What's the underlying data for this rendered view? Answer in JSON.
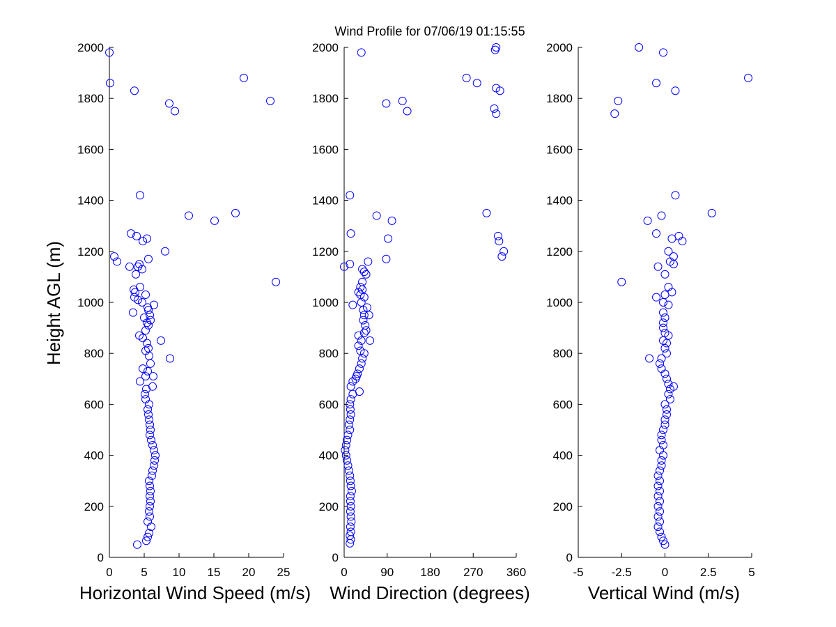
{
  "chart_data": {
    "type": "scatter",
    "title": "Wind Profile for  07/06/19 01:15:55",
    "ylabel": "Height AGL (m)",
    "marker_color": "#0000ff",
    "panels": [
      {
        "id": "speed",
        "xlabel": "Horizontal Wind Speed (m/s)",
        "xlim": [
          0,
          25
        ],
        "ylim": [
          0,
          2000
        ],
        "xticks": [
          0,
          5,
          10,
          15,
          20,
          25
        ],
        "xtick_labels": [
          "0",
          "5",
          "10",
          "15",
          "20",
          "25"
        ],
        "yticks": [
          0,
          200,
          400,
          600,
          800,
          1000,
          1200,
          1400,
          1600,
          1800,
          2000
        ],
        "ytick_labels": [
          "0",
          "200",
          "400",
          "600",
          "800",
          "1000",
          "1200",
          "1400",
          "1600",
          "1800",
          "2000"
        ],
        "points": [
          [
            4,
            50
          ],
          [
            5.3,
            65
          ],
          [
            5.5,
            80
          ],
          [
            5.7,
            95
          ],
          [
            6,
            120
          ],
          [
            5.5,
            140
          ],
          [
            5.8,
            160
          ],
          [
            5.7,
            180
          ],
          [
            5.8,
            200
          ],
          [
            5.9,
            220
          ],
          [
            5.8,
            240
          ],
          [
            5.9,
            260
          ],
          [
            5.8,
            280
          ],
          [
            5.7,
            300
          ],
          [
            6.1,
            320
          ],
          [
            6.2,
            340
          ],
          [
            6.4,
            360
          ],
          [
            6.5,
            380
          ],
          [
            6.6,
            400
          ],
          [
            6.4,
            420
          ],
          [
            6.2,
            440
          ],
          [
            6,
            460
          ],
          [
            5.8,
            480
          ],
          [
            5.9,
            500
          ],
          [
            5.8,
            520
          ],
          [
            5.7,
            540
          ],
          [
            5.6,
            560
          ],
          [
            5.5,
            580
          ],
          [
            5.7,
            600
          ],
          [
            5.2,
            620
          ],
          [
            5.1,
            640
          ],
          [
            5.3,
            660
          ],
          [
            6.2,
            670
          ],
          [
            4.4,
            690
          ],
          [
            5.2,
            710
          ],
          [
            6.3,
            710
          ],
          [
            5.5,
            730
          ],
          [
            4.8,
            740
          ],
          [
            5.9,
            760
          ],
          [
            8.7,
            780
          ],
          [
            5.7,
            790
          ],
          [
            5.2,
            810
          ],
          [
            5.6,
            820
          ],
          [
            5.4,
            840
          ],
          [
            7.4,
            850
          ],
          [
            4.8,
            860
          ],
          [
            4.3,
            870
          ],
          [
            5.2,
            890
          ],
          [
            5.6,
            910
          ],
          [
            5.4,
            920
          ],
          [
            5.9,
            930
          ],
          [
            5,
            940
          ],
          [
            5.8,
            950
          ],
          [
            3.4,
            960
          ],
          [
            5.6,
            970
          ],
          [
            5.5,
            980
          ],
          [
            6.4,
            990
          ],
          [
            4.7,
            1000
          ],
          [
            4.1,
            1010
          ],
          [
            3.6,
            1020
          ],
          [
            5.2,
            1030
          ],
          [
            3.7,
            1040
          ],
          [
            3.5,
            1050
          ],
          [
            4.4,
            1060
          ],
          [
            23.9,
            1080
          ],
          [
            3.8,
            1110
          ],
          [
            4.7,
            1130
          ],
          [
            4.1,
            1140
          ],
          [
            2.9,
            1140
          ],
          [
            4.3,
            1150
          ],
          [
            1.1,
            1160
          ],
          [
            5.6,
            1170
          ],
          [
            0.7,
            1180
          ],
          [
            8,
            1200
          ],
          [
            4.8,
            1240
          ],
          [
            5.4,
            1250
          ],
          [
            3.9,
            1260
          ],
          [
            3.1,
            1270
          ],
          [
            15.1,
            1320
          ],
          [
            11.4,
            1340
          ],
          [
            18.1,
            1350
          ],
          [
            4.4,
            1420
          ],
          [
            0.1,
            1860
          ],
          [
            3.6,
            1830
          ],
          [
            8.6,
            1780
          ],
          [
            9.4,
            1750
          ],
          [
            23.1,
            1790
          ],
          [
            19.3,
            1880
          ],
          [
            0,
            1980
          ]
        ]
      },
      {
        "id": "direction",
        "xlabel": "Wind Direction (degrees)",
        "xlim": [
          0,
          360
        ],
        "ylim": [
          0,
          2000
        ],
        "xticks": [
          0,
          90,
          180,
          270,
          360
        ],
        "xtick_labels": [
          "0",
          "90",
          "180",
          "270",
          "360"
        ],
        "yticks": [
          0,
          200,
          400,
          600,
          800,
          1000,
          1200,
          1400,
          1600,
          1800,
          2000
        ],
        "ytick_labels": [
          "0",
          "200",
          "400",
          "600",
          "800",
          "1000",
          "1200",
          "1400",
          "1600",
          "1800",
          "2000"
        ],
        "points": [
          [
            12,
            55
          ],
          [
            14,
            70
          ],
          [
            12,
            85
          ],
          [
            14,
            100
          ],
          [
            13,
            120
          ],
          [
            15,
            140
          ],
          [
            14,
            160
          ],
          [
            13,
            180
          ],
          [
            14,
            200
          ],
          [
            13,
            220
          ],
          [
            13,
            240
          ],
          [
            16,
            260
          ],
          [
            14,
            280
          ],
          [
            13,
            300
          ],
          [
            12,
            320
          ],
          [
            10,
            340
          ],
          [
            8,
            360
          ],
          [
            6,
            380
          ],
          [
            4,
            400
          ],
          [
            2,
            420
          ],
          [
            4,
            440
          ],
          [
            6,
            460
          ],
          [
            8,
            480
          ],
          [
            12,
            500
          ],
          [
            10,
            520
          ],
          [
            12,
            540
          ],
          [
            14,
            560
          ],
          [
            13,
            580
          ],
          [
            12,
            600
          ],
          [
            14,
            620
          ],
          [
            18,
            640
          ],
          [
            32,
            650
          ],
          [
            14,
            670
          ],
          [
            18,
            690
          ],
          [
            24,
            700
          ],
          [
            26,
            710
          ],
          [
            28,
            720
          ],
          [
            32,
            740
          ],
          [
            36,
            760
          ],
          [
            38,
            780
          ],
          [
            42,
            800
          ],
          [
            34,
            810
          ],
          [
            30,
            830
          ],
          [
            36,
            850
          ],
          [
            54,
            850
          ],
          [
            30,
            870
          ],
          [
            42,
            880
          ],
          [
            46,
            890
          ],
          [
            44,
            910
          ],
          [
            40,
            930
          ],
          [
            42,
            950
          ],
          [
            52,
            950
          ],
          [
            40,
            970
          ],
          [
            48,
            980
          ],
          [
            18,
            990
          ],
          [
            36,
            1000
          ],
          [
            42,
            1020
          ],
          [
            34,
            1030
          ],
          [
            30,
            1040
          ],
          [
            38,
            1050
          ],
          [
            34,
            1060
          ],
          [
            38,
            1080
          ],
          [
            46,
            1110
          ],
          [
            42,
            1120
          ],
          [
            38,
            1130
          ],
          [
            0,
            1140
          ],
          [
            12,
            1150
          ],
          [
            50,
            1160
          ],
          [
            88,
            1170
          ],
          [
            92,
            1250
          ],
          [
            330,
            1180
          ],
          [
            334,
            1200
          ],
          [
            324,
            1240
          ],
          [
            322,
            1260
          ],
          [
            14,
            1270
          ],
          [
            100,
            1320
          ],
          [
            68,
            1340
          ],
          [
            298,
            1350
          ],
          [
            12,
            1420
          ],
          [
            278,
            1860
          ],
          [
            256,
            1880
          ],
          [
            88,
            1780
          ],
          [
            132,
            1750
          ],
          [
            122,
            1790
          ],
          [
            314,
            1760
          ],
          [
            318,
            1740
          ],
          [
            318,
            1840
          ],
          [
            326,
            1830
          ],
          [
            36,
            1980
          ],
          [
            316,
            1990
          ],
          [
            318,
            2000
          ]
        ]
      },
      {
        "id": "vertical",
        "xlabel": "Vertical Wind (m/s)",
        "xlim": [
          -5,
          5
        ],
        "ylim": [
          0,
          2000
        ],
        "xticks": [
          -5,
          -2.5,
          0,
          2.5,
          5
        ],
        "xtick_labels": [
          "-5",
          "-2.5",
          "0",
          "2.5",
          "5"
        ],
        "yticks": [
          0,
          200,
          400,
          600,
          800,
          1000,
          1200,
          1400,
          1600,
          1800,
          2000
        ],
        "ytick_labels": [
          "0",
          "200",
          "400",
          "600",
          "800",
          "1000",
          "1200",
          "1400",
          "1600",
          "1800",
          "2000"
        ],
        "points": [
          [
            0,
            50
          ],
          [
            -0.1,
            65
          ],
          [
            -0.2,
            80
          ],
          [
            -0.3,
            100
          ],
          [
            -0.4,
            120
          ],
          [
            -0.3,
            140
          ],
          [
            -0.4,
            160
          ],
          [
            -0.3,
            180
          ],
          [
            -0.4,
            200
          ],
          [
            -0.3,
            220
          ],
          [
            -0.4,
            240
          ],
          [
            -0.3,
            260
          ],
          [
            -0.4,
            280
          ],
          [
            -0.3,
            300
          ],
          [
            -0.4,
            320
          ],
          [
            -0.3,
            340
          ],
          [
            -0.2,
            360
          ],
          [
            -0.2,
            380
          ],
          [
            -0.1,
            400
          ],
          [
            -0.3,
            420
          ],
          [
            -0.1,
            440
          ],
          [
            -0.2,
            460
          ],
          [
            -0.2,
            480
          ],
          [
            -0.1,
            500
          ],
          [
            0,
            520
          ],
          [
            0,
            540
          ],
          [
            0.1,
            560
          ],
          [
            0.1,
            580
          ],
          [
            0,
            600
          ],
          [
            0.3,
            620
          ],
          [
            0.2,
            640
          ],
          [
            0.3,
            660
          ],
          [
            0.5,
            670
          ],
          [
            0.2,
            680
          ],
          [
            0.1,
            700
          ],
          [
            0,
            720
          ],
          [
            -0.2,
            740
          ],
          [
            -0.3,
            760
          ],
          [
            -0.2,
            780
          ],
          [
            -0.9,
            780
          ],
          [
            0.1,
            800
          ],
          [
            0,
            820
          ],
          [
            0.1,
            840
          ],
          [
            -0.1,
            850
          ],
          [
            0.2,
            870
          ],
          [
            0,
            880
          ],
          [
            -0.1,
            900
          ],
          [
            -0.1,
            920
          ],
          [
            0,
            940
          ],
          [
            -0.1,
            960
          ],
          [
            0.2,
            990
          ],
          [
            -0.1,
            1000
          ],
          [
            -0.5,
            1020
          ],
          [
            0,
            1030
          ],
          [
            0.4,
            1040
          ],
          [
            0.2,
            1060
          ],
          [
            -2.5,
            1080
          ],
          [
            0,
            1110
          ],
          [
            -0.4,
            1140
          ],
          [
            0.5,
            1150
          ],
          [
            0.3,
            1160
          ],
          [
            0.5,
            1180
          ],
          [
            0.2,
            1200
          ],
          [
            1,
            1240
          ],
          [
            0.4,
            1250
          ],
          [
            0.8,
            1260
          ],
          [
            -0.5,
            1270
          ],
          [
            -1,
            1320
          ],
          [
            -0.2,
            1340
          ],
          [
            2.7,
            1350
          ],
          [
            0.6,
            1420
          ],
          [
            -0.5,
            1860
          ],
          [
            0.6,
            1830
          ],
          [
            -2.7,
            1790
          ],
          [
            -2.9,
            1740
          ],
          [
            4.8,
            1880
          ],
          [
            -0.1,
            1980
          ],
          [
            -1.5,
            2000
          ]
        ]
      }
    ]
  }
}
